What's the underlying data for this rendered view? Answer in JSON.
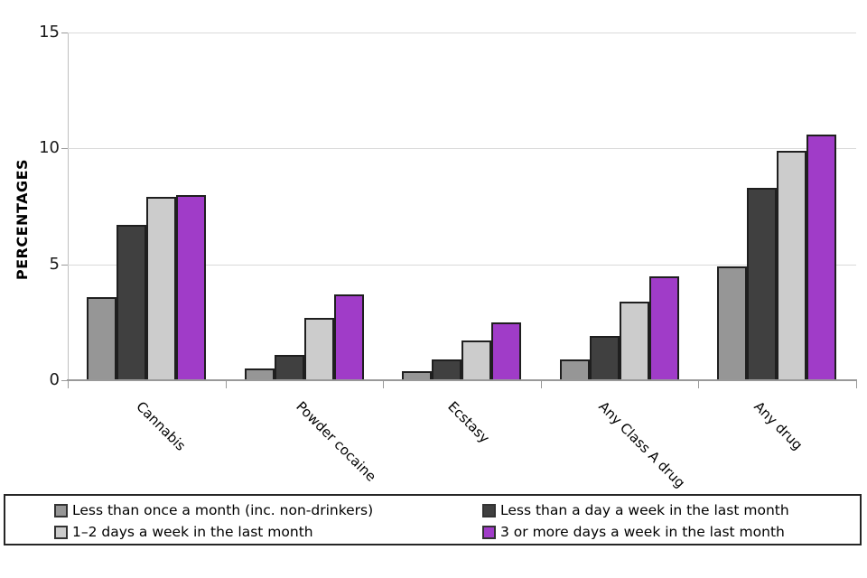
{
  "chart_data": {
    "type": "bar",
    "title": "",
    "xlabel": "",
    "ylabel": "PERCENTAGES",
    "ylim": [
      0,
      15
    ],
    "yticks": [
      0,
      5,
      10,
      15
    ],
    "grid": "horizontal",
    "legend_position": "bottom",
    "categories": [
      "Cannabis",
      "Powder cocaine",
      "Ecstasy",
      "Any Class A drug",
      "Any drug"
    ],
    "series": [
      {
        "name": "Less than once a month (inc. non-drinkers)",
        "color": "#969696",
        "values": [
          3.6,
          0.5,
          0.4,
          0.9,
          4.9
        ]
      },
      {
        "name": "Less than a day a week in the last month",
        "color": "#404040",
        "values": [
          6.7,
          1.1,
          0.9,
          1.9,
          8.3
        ]
      },
      {
        "name": "1–2 days a week in the last month",
        "color": "#cccccc",
        "values": [
          7.9,
          2.7,
          1.7,
          3.4,
          9.9
        ]
      },
      {
        "name": "3 or more days a week in the last month",
        "color": "#a03cc8",
        "values": [
          8.0,
          3.7,
          2.5,
          4.5,
          10.6
        ]
      }
    ],
    "colors": {
      "gridline": "#d9d9d9",
      "axis": "#999999",
      "bar_border": "#1f1f1f",
      "accent_purple": "#a03cc8"
    }
  }
}
